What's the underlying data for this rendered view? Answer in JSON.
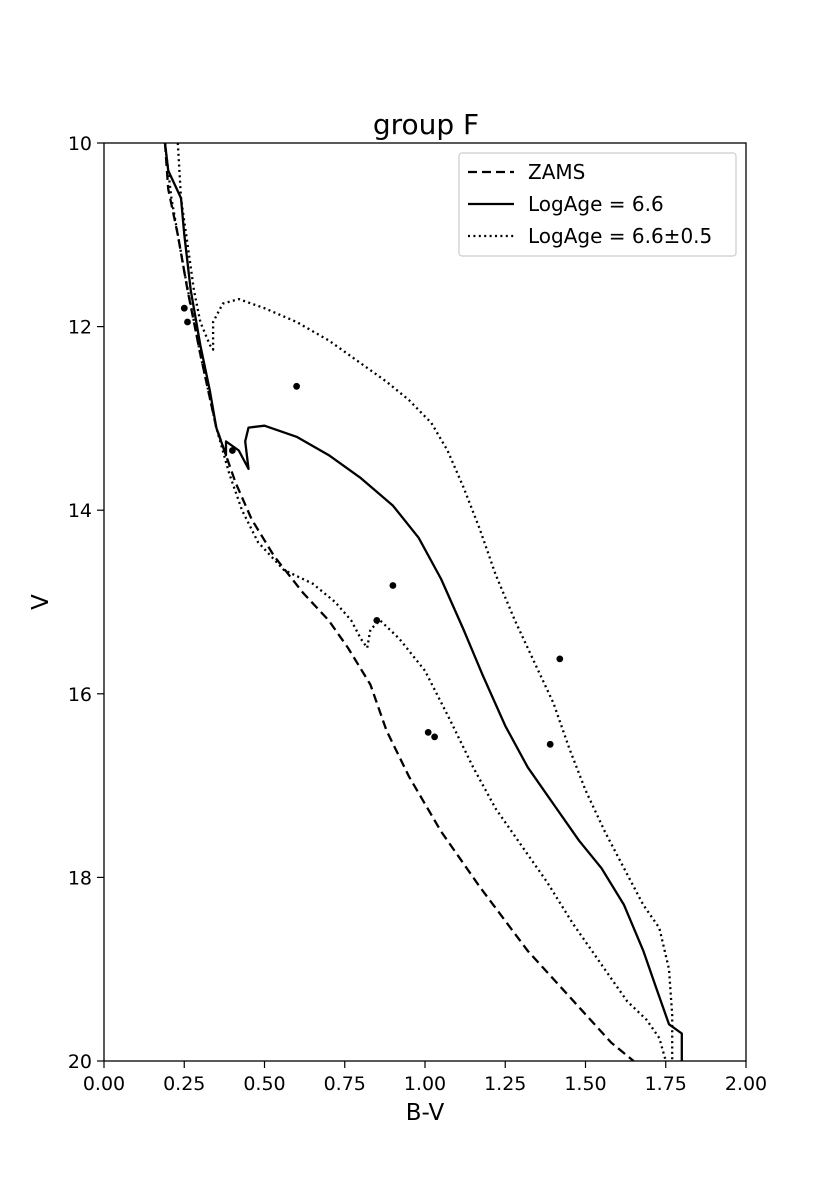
{
  "chart_data": {
    "type": "scatter",
    "title": "group F",
    "xlabel": "B-V",
    "ylabel": "V",
    "xlim": [
      0.0,
      2.0
    ],
    "ylim": [
      20,
      10
    ],
    "y_inverted": true,
    "grid": false,
    "legend_position": "top-right",
    "x_ticks": [
      "0.00",
      "0.25",
      "0.50",
      "0.75",
      "1.00",
      "1.25",
      "1.50",
      "1.75",
      "2.00"
    ],
    "y_ticks": [
      "10",
      "12",
      "14",
      "16",
      "18",
      "20"
    ],
    "series": [
      {
        "name": "ZAMS",
        "style": "dashed",
        "color": "#000000",
        "points": [
          [
            0.19,
            10.0
          ],
          [
            0.2,
            10.5
          ],
          [
            0.23,
            11.0
          ],
          [
            0.26,
            11.6
          ],
          [
            0.3,
            12.3
          ],
          [
            0.35,
            13.1
          ],
          [
            0.41,
            13.7
          ],
          [
            0.46,
            14.1
          ],
          [
            0.53,
            14.5
          ],
          [
            0.62,
            14.9
          ],
          [
            0.7,
            15.2
          ],
          [
            0.76,
            15.5
          ],
          [
            0.83,
            15.9
          ],
          [
            0.88,
            16.4
          ],
          [
            0.95,
            16.9
          ],
          [
            1.05,
            17.5
          ],
          [
            1.17,
            18.1
          ],
          [
            1.32,
            18.8
          ],
          [
            1.45,
            19.3
          ],
          [
            1.58,
            19.8
          ],
          [
            1.65,
            20.0
          ]
        ]
      },
      {
        "name": "LogAge = 6.6",
        "style": "solid",
        "color": "#000000",
        "points": [
          [
            0.19,
            10.0
          ],
          [
            0.2,
            10.3
          ],
          [
            0.24,
            10.6
          ],
          [
            0.25,
            11.0
          ],
          [
            0.27,
            11.6
          ],
          [
            0.3,
            12.2
          ],
          [
            0.33,
            12.7
          ],
          [
            0.35,
            13.1
          ],
          [
            0.38,
            13.4
          ],
          [
            0.38,
            13.25
          ],
          [
            0.42,
            13.35
          ],
          [
            0.45,
            13.55
          ],
          [
            0.44,
            13.25
          ],
          [
            0.45,
            13.1
          ],
          [
            0.5,
            13.08
          ],
          [
            0.6,
            13.2
          ],
          [
            0.7,
            13.4
          ],
          [
            0.8,
            13.65
          ],
          [
            0.9,
            13.95
          ],
          [
            0.98,
            14.3
          ],
          [
            1.05,
            14.75
          ],
          [
            1.12,
            15.3
          ],
          [
            1.18,
            15.8
          ],
          [
            1.25,
            16.35
          ],
          [
            1.32,
            16.8
          ],
          [
            1.4,
            17.2
          ],
          [
            1.48,
            17.6
          ],
          [
            1.55,
            17.9
          ],
          [
            1.62,
            18.3
          ],
          [
            1.68,
            18.8
          ],
          [
            1.72,
            19.2
          ],
          [
            1.76,
            19.6
          ],
          [
            1.8,
            19.7
          ],
          [
            1.8,
            20.0
          ]
        ]
      },
      {
        "name": "LogAge = 6.6±0.5",
        "style": "dotted",
        "color": "#000000",
        "points": [
          [
            0.23,
            10.0
          ],
          [
            0.24,
            10.6
          ],
          [
            0.26,
            11.1
          ],
          [
            0.28,
            11.6
          ],
          [
            0.3,
            11.95
          ],
          [
            0.33,
            12.2
          ],
          [
            0.34,
            12.25
          ],
          [
            0.34,
            11.95
          ],
          [
            0.37,
            11.75
          ],
          [
            0.42,
            11.7
          ],
          [
            0.5,
            11.8
          ],
          [
            0.6,
            11.95
          ],
          [
            0.7,
            12.15
          ],
          [
            0.8,
            12.4
          ],
          [
            0.88,
            12.6
          ],
          [
            0.95,
            12.8
          ],
          [
            1.02,
            13.05
          ],
          [
            1.07,
            13.35
          ],
          [
            1.12,
            13.75
          ],
          [
            1.17,
            14.2
          ],
          [
            1.22,
            14.7
          ],
          [
            1.28,
            15.2
          ],
          [
            1.34,
            15.65
          ],
          [
            1.4,
            16.1
          ],
          [
            1.45,
            16.6
          ],
          [
            1.5,
            17.05
          ],
          [
            1.56,
            17.5
          ],
          [
            1.62,
            17.9
          ],
          [
            1.68,
            18.3
          ],
          [
            1.73,
            18.55
          ],
          [
            1.76,
            19.0
          ],
          [
            1.77,
            19.5
          ],
          [
            1.77,
            20.0
          ]
        ]
      },
      {
        "name": "",
        "style": "dotted",
        "color": "#000000",
        "points": [
          [
            0.19,
            10.0
          ],
          [
            0.21,
            10.6
          ],
          [
            0.25,
            11.4
          ],
          [
            0.3,
            12.3
          ],
          [
            0.35,
            13.1
          ],
          [
            0.39,
            13.6
          ],
          [
            0.43,
            14.0
          ],
          [
            0.48,
            14.35
          ],
          [
            0.56,
            14.65
          ],
          [
            0.65,
            14.8
          ],
          [
            0.72,
            15.0
          ],
          [
            0.77,
            15.2
          ],
          [
            0.8,
            15.4
          ],
          [
            0.82,
            15.5
          ],
          [
            0.83,
            15.3
          ],
          [
            0.86,
            15.2
          ],
          [
            0.92,
            15.4
          ],
          [
            1.0,
            15.75
          ],
          [
            1.08,
            16.3
          ],
          [
            1.15,
            16.8
          ],
          [
            1.22,
            17.25
          ],
          [
            1.3,
            17.65
          ],
          [
            1.38,
            18.05
          ],
          [
            1.46,
            18.5
          ],
          [
            1.55,
            18.95
          ],
          [
            1.63,
            19.35
          ],
          [
            1.69,
            19.55
          ],
          [
            1.73,
            19.75
          ],
          [
            1.75,
            20.0
          ]
        ]
      }
    ],
    "stars": [
      [
        0.25,
        11.8
      ],
      [
        0.26,
        11.95
      ],
      [
        0.6,
        12.65
      ],
      [
        0.4,
        13.35
      ],
      [
        0.9,
        14.82
      ],
      [
        0.85,
        15.2
      ],
      [
        1.42,
        15.62
      ],
      [
        1.39,
        16.55
      ],
      [
        1.01,
        16.42
      ],
      [
        1.03,
        16.47
      ]
    ]
  }
}
